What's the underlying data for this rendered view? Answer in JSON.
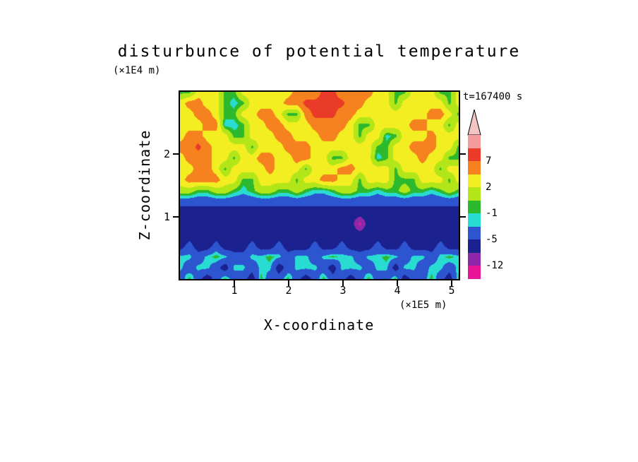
{
  "title": "disturbunce of potential temperature",
  "timestamp": "t=167400 s",
  "axes": {
    "x": {
      "label": "X-coordinate",
      "unit": "(×1E5 m)",
      "tick_labels": [
        "1",
        "2",
        "3",
        "4",
        "5"
      ]
    },
    "z": {
      "label": "Z-coordinate",
      "unit": "(×1E4 m)",
      "tick_labels": [
        "1",
        "2"
      ]
    }
  },
  "colorbar": {
    "arrow_color": "#f2c4c4",
    "labels": [
      {
        "text": "7",
        "boundary": 2
      },
      {
        "text": "2",
        "boundary": 4
      },
      {
        "text": "-1",
        "boundary": 6
      },
      {
        "text": "-5",
        "boundary": 8
      },
      {
        "text": "-12",
        "boundary": 10
      }
    ]
  },
  "chart_data": {
    "type": "heatmap",
    "title": "disturbunce of potential temperature",
    "xlabel": "X-coordinate (×1E5 m)",
    "ylabel": "Z-coordinate (×1E4 m)",
    "time_annotation": "t=167400 s",
    "x_range": [
      0,
      5.13
    ],
    "z_range": [
      0,
      3.0
    ],
    "x_ticks": [
      1,
      2,
      3,
      4,
      5
    ],
    "z_ticks": [
      1,
      2
    ],
    "colorscale": {
      "levels": [
        -12,
        -9,
        -5,
        -2,
        -1,
        0,
        2,
        4,
        7,
        10
      ],
      "colors": [
        "#e8159b",
        "#8e27a9",
        "#1c2190",
        "#2c55cf",
        "#29dcd2",
        "#2db92d",
        "#b2e618",
        "#f2ee22",
        "#f5821e",
        "#ea3b28",
        "#f59b9b"
      ],
      "labeled_levels": [
        7,
        2,
        -1,
        -5,
        -12
      ]
    },
    "grid": [
      [
        -0.5,
        -0.5,
        3,
        3,
        3,
        -0.5,
        -0.5,
        3,
        3,
        3,
        3,
        3,
        3,
        5,
        5,
        5,
        8,
        8,
        5,
        5,
        5,
        5,
        3,
        3,
        -0.5,
        -0.5,
        3,
        3,
        3,
        -0.5,
        -0.5,
        3
      ],
      [
        3,
        5,
        5,
        3,
        3,
        -0.5,
        -1.5,
        -0.5,
        3,
        3,
        3,
        3,
        5,
        5,
        8,
        8,
        8,
        8,
        8,
        5,
        5,
        3,
        3,
        3,
        -0.5,
        3,
        3,
        3,
        3,
        3,
        -0.5,
        3
      ],
      [
        3,
        3,
        5,
        5,
        3,
        -0.5,
        -0.5,
        3,
        3,
        5,
        5,
        3,
        -0.5,
        -0.5,
        5,
        8,
        8,
        8,
        5,
        5,
        3,
        3,
        3,
        3,
        3,
        3,
        3,
        3,
        5,
        5,
        3,
        -0.5
      ],
      [
        3,
        3,
        3,
        5,
        5,
        -1.5,
        -1.5,
        -0.5,
        3,
        3,
        5,
        5,
        3,
        3,
        3,
        5,
        5,
        5,
        5,
        3,
        -0.5,
        -0.5,
        3,
        3,
        3,
        3,
        5,
        5,
        3,
        3,
        -0.5,
        3
      ],
      [
        3,
        5,
        5,
        3,
        3,
        3,
        -0.5,
        -0.5,
        3,
        3,
        3,
        5,
        5,
        3,
        3,
        3,
        5,
        5,
        3,
        3,
        -0.5,
        3,
        3,
        -1.5,
        -0.5,
        3,
        3,
        3,
        5,
        3,
        3,
        3
      ],
      [
        5,
        5,
        8,
        5,
        3,
        3,
        3,
        3,
        -0.5,
        3,
        3,
        3,
        5,
        5,
        5,
        3,
        3,
        3,
        3,
        3,
        3,
        3,
        -0.5,
        -0.5,
        3,
        3,
        5,
        5,
        5,
        3,
        3,
        -0.5
      ],
      [
        3,
        5,
        5,
        5,
        3,
        3,
        -0.5,
        3,
        3,
        5,
        5,
        3,
        3,
        5,
        5,
        3,
        3,
        -0.5,
        -0.5,
        3,
        3,
        3,
        -1.5,
        -0.5,
        3,
        3,
        3,
        5,
        3,
        3,
        -0.5,
        -0.5
      ],
      [
        3,
        3,
        5,
        5,
        3,
        -0.5,
        3,
        3,
        3,
        3,
        5,
        3,
        3,
        3,
        -0.5,
        3,
        3,
        3,
        5,
        5,
        3,
        3,
        3,
        3,
        -0.5,
        3,
        3,
        3,
        3,
        -0.5,
        3,
        3
      ],
      [
        3,
        5,
        5,
        5,
        5,
        3,
        3,
        -0.5,
        -0.5,
        3,
        3,
        3,
        3,
        -0.5,
        3,
        3,
        5,
        5,
        3,
        3,
        -0.5,
        3,
        3,
        3,
        -0.5,
        -0.5,
        -0.5,
        3,
        3,
        3,
        -0.5,
        3
      ],
      [
        1,
        1,
        -0.5,
        -0.5,
        1,
        1,
        -0.5,
        -1.5,
        -0.5,
        1,
        1,
        -0.5,
        -0.5,
        1,
        -0.5,
        -1.5,
        -1.5,
        -0.5,
        1,
        1,
        -0.5,
        -0.5,
        -1.5,
        -0.5,
        -0.5,
        1,
        -0.5,
        -0.5,
        -1.5,
        -0.5,
        1,
        -0.5
      ],
      [
        -3.5,
        -3.5,
        -3.5,
        -3.5,
        -3.5,
        -3.5,
        -3.5,
        -3.5,
        -3.5,
        -3.5,
        -3.5,
        -3.5,
        -3.5,
        -3.5,
        -3.5,
        -3.5,
        -3.5,
        -3.5,
        -3.5,
        -3.5,
        -3.5,
        -3.5,
        -3.5,
        -3.5,
        -3.5,
        -3.5,
        -3.5,
        -3.5,
        -3.5,
        -3.5,
        -3.5,
        -3.5
      ],
      [
        -7,
        -7,
        -7,
        -7,
        -7,
        -7,
        -7,
        -7,
        -7,
        -7,
        -7,
        -7,
        -7,
        -7,
        -7,
        -7,
        -7,
        -7,
        -7,
        -7,
        -7,
        -7,
        -7,
        -7,
        -7,
        -7,
        -7,
        -7,
        -7,
        -7,
        -7,
        -7
      ],
      [
        -7,
        -7,
        -7,
        -7,
        -7,
        -7,
        -7,
        -7,
        -7,
        -7,
        -7,
        -7,
        -7,
        -7,
        -7,
        -7,
        -7,
        -7,
        -7,
        -7,
        -13,
        -7,
        -7,
        -7,
        -7,
        -7,
        -7,
        -7,
        -7,
        -7,
        -7,
        -7
      ],
      [
        -7,
        -7,
        -7,
        -7,
        -7,
        -7,
        -7,
        -7,
        -7,
        -7,
        -7,
        -7,
        -7,
        -7,
        -7,
        -7,
        -7,
        -7,
        -7,
        -7,
        -7,
        -7,
        -7,
        -7,
        -7,
        -7,
        -7,
        -7,
        -7,
        -7,
        -7,
        -7
      ],
      [
        -7,
        -3.5,
        -7,
        -7,
        -3.5,
        -7,
        -7,
        -7,
        -3.5,
        -7,
        -7,
        -3.5,
        -7,
        -7,
        -7,
        -3.5,
        -7,
        -7,
        -3.5,
        -7,
        -7,
        -7,
        -3.5,
        -7,
        -7,
        -3.5,
        -7,
        -7,
        -7,
        -3.5,
        -7,
        -7
      ],
      [
        -1.5,
        -1.5,
        -3.5,
        -1.5,
        -0.5,
        -1.5,
        -3.5,
        -3.5,
        -1.5,
        -1.5,
        -0.5,
        -1.5,
        -3.5,
        -1.5,
        -1.5,
        -3.5,
        -1.5,
        -0.5,
        -1.5,
        -1.5,
        -3.5,
        -1.5,
        -1.5,
        -0.5,
        -1.5,
        -3.5,
        -1.5,
        -1.5,
        -3.5,
        -1.5,
        -0.5,
        -1.5
      ],
      [
        -1.5,
        -3.5,
        -1.5,
        -1.5,
        -3.5,
        -7,
        -1.5,
        -1.5,
        -3.5,
        -1.5,
        -1.5,
        -7,
        -3.5,
        -1.5,
        -1.5,
        -1.5,
        -3.5,
        -7,
        -1.5,
        -1.5,
        -1.5,
        -3.5,
        -1.5,
        -1.5,
        -7,
        -1.5,
        -1.5,
        -3.5,
        -1.5,
        -1.5,
        -3.5,
        -1.5
      ],
      [
        -3.5,
        -0.5,
        -3.5,
        -7,
        -3.5,
        -0.5,
        -3.5,
        -3.5,
        -7,
        -0.5,
        -3.5,
        -3.5,
        -0.5,
        -3.5,
        -7,
        -3.5,
        -0.5,
        -3.5,
        -3.5,
        -7,
        -3.5,
        -0.5,
        -3.5,
        -3.5,
        -0.5,
        -7,
        -3.5,
        -3.5,
        -0.5,
        -3.5,
        -7,
        -0.5
      ]
    ]
  }
}
